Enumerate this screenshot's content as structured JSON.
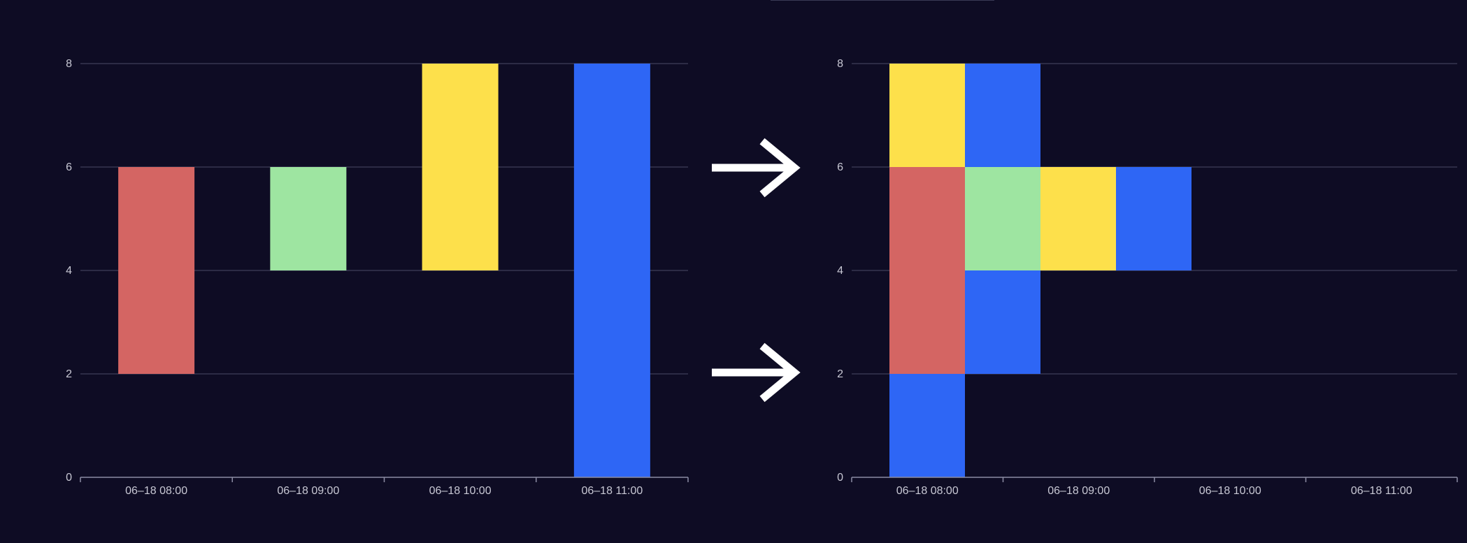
{
  "colors": {
    "background": "#0e0c24",
    "grid": "#4a4a66",
    "axis": "#8c8ca4",
    "tick_text": "#c8c8d4",
    "arrow": "#ffffff",
    "red": "#d46563",
    "green": "#9ee5a1",
    "yellow": "#fde04b",
    "blue": "#2e66f5"
  },
  "arrows": [
    {
      "icon": "arrow-right-icon"
    },
    {
      "icon": "arrow-right-icon"
    }
  ],
  "chart_data": [
    {
      "type": "bar",
      "subtype": "floating-range",
      "categories": [
        "06–18 08:00",
        "06–18 09:00",
        "06–18 10:00",
        "06–18 11:00"
      ],
      "ylim": [
        0,
        8
      ],
      "yticks": [
        "0",
        "2",
        "4",
        "6",
        "8"
      ],
      "grid": true,
      "bars": [
        {
          "category": 0,
          "start": 2,
          "end": 6,
          "color": "red"
        },
        {
          "category": 1,
          "start": 4,
          "end": 6,
          "color": "green"
        },
        {
          "category": 2,
          "start": 4,
          "end": 8,
          "color": "yellow"
        },
        {
          "category": 3,
          "start": 0,
          "end": 8,
          "color": "blue"
        }
      ]
    },
    {
      "type": "bar",
      "subtype": "floating-range",
      "categories": [
        "06–18 08:00",
        "06–18 09:00",
        "06–18 10:00",
        "06–18 11:00"
      ],
      "ylim": [
        0,
        8
      ],
      "yticks": [
        "0",
        "2",
        "4",
        "6",
        "8"
      ],
      "grid": true,
      "bars": [
        {
          "slot": 0,
          "start": 0,
          "end": 2,
          "color": "blue"
        },
        {
          "slot": 0,
          "start": 2,
          "end": 6,
          "color": "red"
        },
        {
          "slot": 0,
          "start": 6,
          "end": 8,
          "color": "yellow"
        },
        {
          "slot": 1,
          "start": 2,
          "end": 4,
          "color": "blue"
        },
        {
          "slot": 1,
          "start": 4,
          "end": 6,
          "color": "green"
        },
        {
          "slot": 1,
          "start": 6,
          "end": 8,
          "color": "blue"
        },
        {
          "slot": 2,
          "start": 4,
          "end": 6,
          "color": "yellow"
        },
        {
          "slot": 3,
          "start": 4,
          "end": 6,
          "color": "blue"
        }
      ]
    }
  ]
}
